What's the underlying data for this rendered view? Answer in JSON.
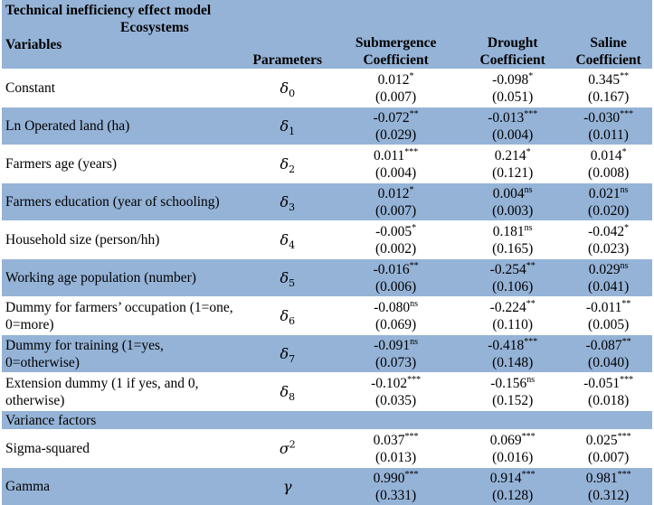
{
  "table": {
    "title": "Technical inefficiency effect model",
    "header": {
      "ecosystems": "Ecosystems",
      "variables": "Variables",
      "parameters": "Parameters",
      "submergence": [
        "Submergence",
        "Coefficient"
      ],
      "drought": [
        "Drought",
        "Coefficient"
      ],
      "saline": [
        "Saline",
        "Coefficient"
      ]
    },
    "rows": [
      {
        "variable": "Constant",
        "param_symbol": "δ",
        "param_sub": "0",
        "sub": {
          "coef": "0.012",
          "sig": "*",
          "se": "(0.007)"
        },
        "dro": {
          "coef": "-0.098",
          "sig": "*",
          "se": "(0.051)"
        },
        "sal": {
          "coef": "0.345",
          "sig": "**",
          "se": "(0.167)"
        }
      },
      {
        "variable": "Ln Operated land (ha)",
        "param_symbol": "δ",
        "param_sub": "1",
        "sub": {
          "coef": "-0.072",
          "sig": "**",
          "se": "(0.029)"
        },
        "dro": {
          "coef": "-0.013",
          "sig": "***",
          "se": "(0.004)"
        },
        "sal": {
          "coef": "-0.030",
          "sig": "***",
          "se": "(0.011)"
        }
      },
      {
        "variable": "Farmers age (years)",
        "param_symbol": "δ",
        "param_sub": "2",
        "sub": {
          "coef": "0.011",
          "sig": "***",
          "se": "(0.004)"
        },
        "dro": {
          "coef": "0.214",
          "sig": "*",
          "se": "(0.121)"
        },
        "sal": {
          "coef": "0.014",
          "sig": "*",
          "se": "(0.008)"
        }
      },
      {
        "variable": "Farmers education (year of schooling)",
        "param_symbol": "δ",
        "param_sub": "3",
        "sub": {
          "coef": "0.012",
          "sig": "*",
          "se": "(0.007)"
        },
        "dro": {
          "coef": "0.004",
          "sig": "ns",
          "se": "(0.003)"
        },
        "sal": {
          "coef": "0.021",
          "sig": "ns",
          "se": "(0.020)"
        }
      },
      {
        "variable": "Household size (person/hh)",
        "param_symbol": "δ",
        "param_sub": "4",
        "sub": {
          "coef": "-0.005",
          "sig": "*",
          "se": "(0.002)"
        },
        "dro": {
          "coef": "0.181",
          "sig": "ns",
          "se": "(0.165)"
        },
        "sal": {
          "coef": "-0.042",
          "sig": "*",
          "se": "(0.023)"
        }
      },
      {
        "variable": "Working age population (number)",
        "param_symbol": "δ",
        "param_sub": "5",
        "sub": {
          "coef": "-0.016",
          "sig": "**",
          "se": "(0.006)"
        },
        "dro": {
          "coef": "-0.254",
          "sig": "**",
          "se": "(0.106)"
        },
        "sal": {
          "coef": "0.029",
          "sig": "ns",
          "se": "(0.041)"
        }
      },
      {
        "variable": "Dummy for farmers’ occupation (1=one, 0=more)",
        "param_symbol": "δ",
        "param_sub": "6",
        "sub": {
          "coef": "-0.080",
          "sig": "ns",
          "se": "(0.069)"
        },
        "dro": {
          "coef": "-0.224",
          "sig": "**",
          "se": "(0.110)"
        },
        "sal": {
          "coef": "-0.011",
          "sig": "**",
          "se": "(0.005)"
        }
      },
      {
        "variable": "Dummy for training (1=yes, 0=otherwise)",
        "param_symbol": "δ",
        "param_sub": "7",
        "sub": {
          "coef": "-0.091",
          "sig": "ns",
          "se": "(0.073)"
        },
        "dro": {
          "coef": "-0.418",
          "sig": "***",
          "se": "(0.148)"
        },
        "sal": {
          "coef": "-0.087",
          "sig": "**",
          "se": "(0.040)"
        }
      },
      {
        "variable": "Extension dummy (1 if yes, and 0, otherwise)",
        "param_symbol": "δ",
        "param_sub": "8",
        "sub": {
          "coef": "-0.102",
          "sig": "***",
          "se": "(0.035)"
        },
        "dro": {
          "coef": "-0.156",
          "sig": "ns",
          "se": "(0.152)"
        },
        "sal": {
          "coef": "-0.051",
          "sig": "***",
          "se": "(0.018)"
        }
      }
    ],
    "variance_section": "Variance factors",
    "variance_rows": [
      {
        "variable": "Sigma-squared",
        "param_symbol": "σ",
        "param_sup": "2",
        "sub": {
          "coef": "0.037",
          "sig": "***",
          "se": "(0.013)"
        },
        "dro": {
          "coef": "0.069",
          "sig": "***",
          "se": "(0.016)"
        },
        "sal": {
          "coef": "0.025",
          "sig": "***",
          "se": "(0.007)"
        }
      },
      {
        "variable": "Gamma",
        "param_symbol": "γ",
        "sub": {
          "coef": "0.990",
          "sig": "***",
          "se": "(0.331)"
        },
        "dro": {
          "coef": "0.914",
          "sig": "***",
          "se": "(0.128)"
        },
        "sal": {
          "coef": "0.981",
          "sig": "***",
          "se": "(0.312)"
        }
      }
    ]
  }
}
